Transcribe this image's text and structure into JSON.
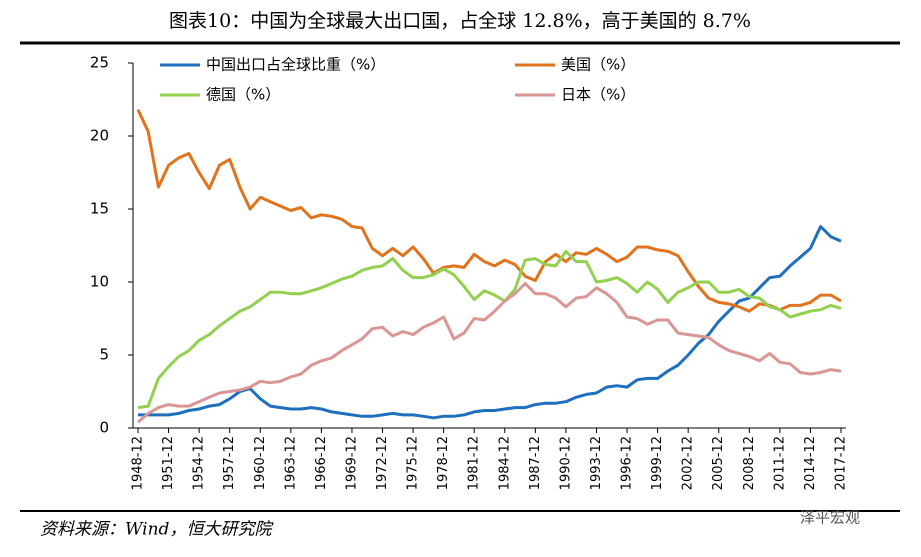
{
  "chart_data": {
    "type": "line",
    "title": "图表10：中国为全球最大出口国，占全球 12.8%，高于美国的 8.7%",
    "source": "资料来源：Wind，恒大研究院",
    "watermark": "泽平宏观",
    "categories": [
      "1948-12",
      null,
      null,
      "1951-12",
      null,
      null,
      "1954-12",
      null,
      null,
      "1957-12",
      null,
      null,
      "1960-12",
      null,
      null,
      "1963-12",
      null,
      null,
      "1966-12",
      null,
      null,
      "1969-12",
      null,
      null,
      "1972-12",
      null,
      null,
      "1975-12",
      null,
      null,
      "1978-12",
      null,
      null,
      "1981-12",
      null,
      null,
      "1984-12",
      null,
      null,
      "1987-12",
      null,
      null,
      "1990-12",
      null,
      null,
      "1993-12",
      null,
      null,
      "1996-12",
      null,
      null,
      "1999-12",
      null,
      null,
      "2002-12",
      null,
      null,
      "2005-12",
      null,
      null,
      "2008-12",
      null,
      null,
      "2011-12",
      null,
      null,
      "2014-12",
      null,
      null,
      "2017-12"
    ],
    "series": [
      {
        "name": "中国出口占全球比重（%）",
        "color": "#1f6fbf",
        "values": [
          0.9,
          0.9,
          0.9,
          0.9,
          1.0,
          1.2,
          1.3,
          1.5,
          1.6,
          2.0,
          2.5,
          2.7,
          2.0,
          1.5,
          1.4,
          1.3,
          1.3,
          1.4,
          1.3,
          1.1,
          1.0,
          0.9,
          0.8,
          0.8,
          0.9,
          1.0,
          0.9,
          0.9,
          0.8,
          0.7,
          0.8,
          0.8,
          0.9,
          1.1,
          1.2,
          1.2,
          1.3,
          1.4,
          1.4,
          1.6,
          1.7,
          1.7,
          1.8,
          2.1,
          2.3,
          2.4,
          2.8,
          2.9,
          2.8,
          3.3,
          3.4,
          3.4,
          3.9,
          4.3,
          5.0,
          5.8,
          6.4,
          7.3,
          8.0,
          8.7,
          8.9,
          9.6,
          10.3,
          10.4,
          11.1,
          11.7,
          12.3,
          13.8,
          13.1,
          12.8
        ]
      },
      {
        "name": "美国（%）",
        "color": "#e0731c",
        "values": [
          21.8,
          20.3,
          16.5,
          18.0,
          18.5,
          18.8,
          17.5,
          16.4,
          18.0,
          18.4,
          16.5,
          15.0,
          15.8,
          15.5,
          15.2,
          14.9,
          15.1,
          14.4,
          14.6,
          14.5,
          14.3,
          13.8,
          13.7,
          12.3,
          11.8,
          12.3,
          11.8,
          12.4,
          11.6,
          10.6,
          11.0,
          11.1,
          11.0,
          11.9,
          11.4,
          11.1,
          11.5,
          11.2,
          10.4,
          10.1,
          11.4,
          11.9,
          11.4,
          12.0,
          11.9,
          12.3,
          11.9,
          11.4,
          11.7,
          12.4,
          12.4,
          12.2,
          12.1,
          11.8,
          10.7,
          9.7,
          8.9,
          8.6,
          8.5,
          8.3,
          8.0,
          8.5,
          8.4,
          8.1,
          8.4,
          8.4,
          8.6,
          9.1,
          9.1,
          8.7
        ]
      },
      {
        "name": "德国（%）",
        "color": "#92d050",
        "values": [
          1.4,
          1.5,
          3.4,
          4.2,
          4.9,
          5.3,
          6.0,
          6.4,
          7.0,
          7.5,
          8.0,
          8.3,
          8.8,
          9.3,
          9.3,
          9.2,
          9.2,
          9.4,
          9.6,
          9.9,
          10.2,
          10.4,
          10.8,
          11.0,
          11.1,
          11.6,
          10.8,
          10.3,
          10.3,
          10.5,
          10.9,
          10.5,
          9.7,
          8.8,
          9.4,
          9.1,
          8.7,
          9.5,
          11.5,
          11.6,
          11.2,
          11.1,
          12.1,
          11.4,
          11.4,
          10.0,
          10.1,
          10.3,
          9.9,
          9.3,
          10.0,
          9.5,
          8.6,
          9.3,
          9.6,
          10.0,
          10.0,
          9.3,
          9.3,
          9.5,
          9.0,
          8.9,
          8.3,
          8.1,
          7.6,
          7.8,
          8.0,
          8.1,
          8.4,
          8.2
        ]
      },
      {
        "name": "日本（%）",
        "color": "#d99694",
        "values": [
          0.4,
          1.0,
          1.4,
          1.6,
          1.5,
          1.5,
          1.8,
          2.1,
          2.4,
          2.5,
          2.6,
          2.8,
          3.2,
          3.1,
          3.2,
          3.5,
          3.7,
          4.3,
          4.6,
          4.8,
          5.3,
          5.7,
          6.1,
          6.8,
          6.9,
          6.3,
          6.6,
          6.4,
          6.9,
          7.2,
          7.6,
          6.1,
          6.5,
          7.5,
          7.4,
          8.0,
          8.7,
          9.2,
          9.9,
          9.2,
          9.2,
          8.9,
          8.3,
          8.9,
          9.0,
          9.6,
          9.2,
          8.6,
          7.6,
          7.5,
          7.1,
          7.4,
          7.4,
          6.5,
          6.4,
          6.3,
          6.2,
          5.7,
          5.3,
          5.1,
          4.9,
          4.6,
          5.1,
          4.5,
          4.4,
          3.8,
          3.7,
          3.8,
          4.0,
          3.9
        ]
      }
    ],
    "ylim": [
      0,
      25
    ],
    "yticks": [
      0,
      5,
      10,
      15,
      20,
      25
    ]
  }
}
